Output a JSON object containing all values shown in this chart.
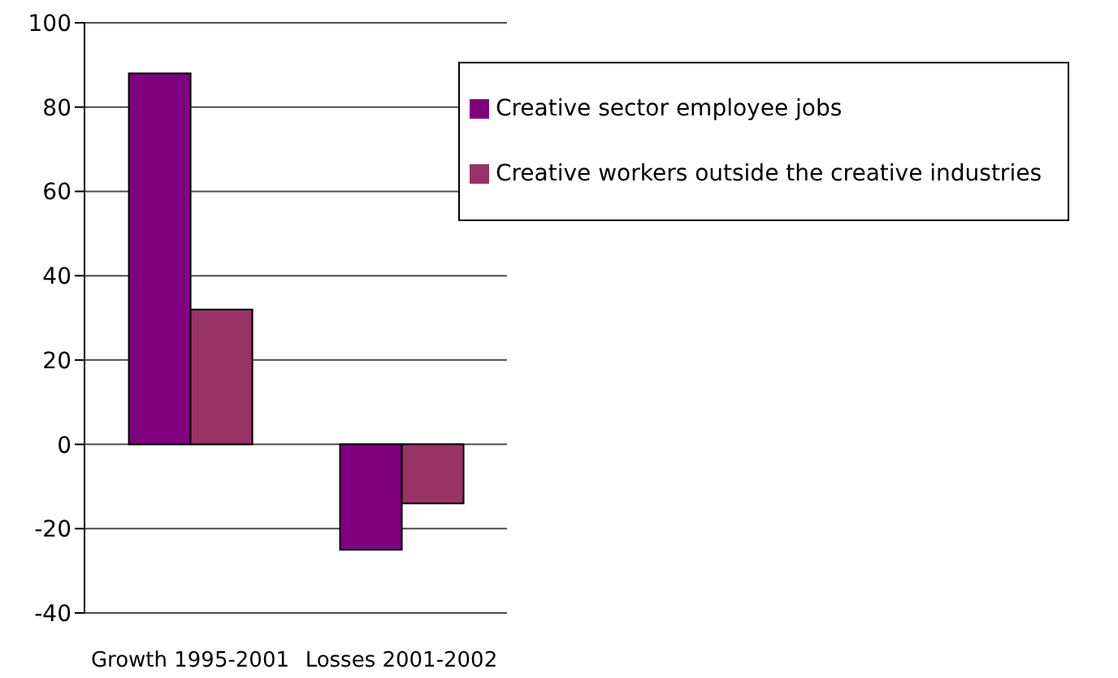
{
  "chart_data": {
    "type": "bar",
    "categories": [
      "Growth 1995-2001",
      "Losses 2001-2002"
    ],
    "series": [
      {
        "name": "Creative sector employee jobs",
        "color": "#800080",
        "values": [
          88,
          -25
        ]
      },
      {
        "name": "Creative workers outside the creative industries",
        "color": "#993366",
        "values": [
          32,
          -14
        ]
      }
    ],
    "ylim": [
      -40,
      100
    ],
    "yticks": [
      -40,
      -20,
      0,
      20,
      40,
      60,
      80,
      100
    ],
    "grid": "y",
    "legend": "top right"
  }
}
